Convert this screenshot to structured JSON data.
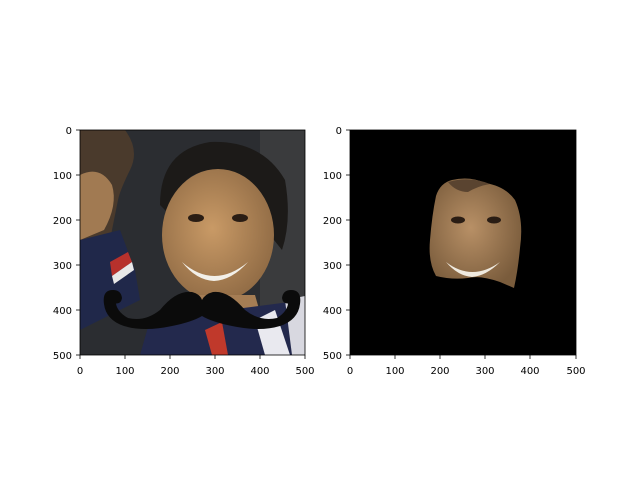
{
  "chart_data": [
    {
      "type": "image",
      "title": "",
      "xlabel": "",
      "ylabel": "",
      "xlim": [
        0,
        500
      ],
      "ylim": [
        500,
        0
      ],
      "x_ticks": [
        0,
        100,
        200,
        300,
        400,
        500
      ],
      "y_ticks": [
        0,
        100,
        200,
        300,
        400,
        500
      ],
      "content": "photo",
      "overlay": "mustache-icon"
    },
    {
      "type": "image",
      "title": "",
      "xlabel": "",
      "ylabel": "",
      "xlim": [
        0,
        500
      ],
      "ylim": [
        500,
        0
      ],
      "x_ticks": [
        0,
        100,
        200,
        300,
        400,
        500
      ],
      "y_ticks": [
        0,
        100,
        200,
        300,
        400,
        500
      ],
      "content": "masked-face",
      "background": "#000000"
    }
  ],
  "colors": {
    "photo_background": "#2b2d31",
    "skin": "#b58a5c",
    "hair": "#1c1a18",
    "mustache": "#0b0b0b",
    "mask_background": "#000000"
  }
}
